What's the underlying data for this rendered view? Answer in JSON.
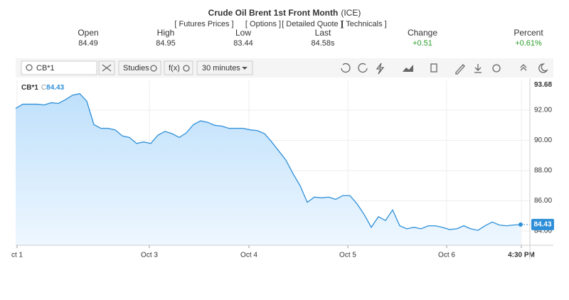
{
  "header": {
    "title": "Crude Oil Brent 1st Front Month",
    "exchange": "(ICE)",
    "links": [
      "[ Futures Prices ]",
      "[ Options ]",
      "[ Detailed Quote ]",
      "[ Technicals ]"
    ]
  },
  "quote": [
    {
      "label": "Open",
      "value": "84.49"
    },
    {
      "label": "High",
      "value": "84.95"
    },
    {
      "label": "Low",
      "value": "83.44"
    },
    {
      "label": "Last",
      "value": "84.58s"
    },
    {
      "label": "Change",
      "value": "+0.51"
    },
    {
      "label": "Percent",
      "value": "+0.61%"
    }
  ],
  "toolbar": {
    "symbol": "CB*1",
    "studies": "Studies",
    "fx": "f(x)",
    "interval": "30 minutes"
  },
  "chart": {
    "type": "line",
    "close_prefix": "C",
    "series": [
      {
        "name": "CB*1",
        "color": "#2e8fd8",
        "values": [
          92.12,
          92.4,
          92.4,
          92.4,
          92.35,
          92.5,
          92.45,
          92.7,
          93.0,
          93.1,
          92.6,
          91.05,
          90.8,
          90.8,
          90.7,
          90.3,
          90.2,
          89.8,
          89.9,
          89.8,
          90.35,
          90.6,
          90.45,
          90.2,
          90.5,
          91.05,
          91.3,
          91.2,
          91.0,
          90.95,
          90.8,
          90.8,
          90.8,
          90.7,
          90.65,
          90.45,
          89.9,
          89.3,
          88.7,
          87.8,
          87.0,
          85.9,
          86.25,
          86.2,
          86.25,
          86.1,
          86.35,
          86.35,
          85.8,
          85.1,
          84.25,
          84.95,
          84.7,
          85.4,
          84.35,
          84.15,
          84.25,
          84.15,
          84.35,
          84.35,
          84.25,
          84.1,
          84.15,
          84.35,
          84.15,
          84.05,
          84.35,
          84.6,
          84.4,
          84.35,
          84.4,
          84.43
        ]
      }
    ],
    "high_label": 93.68,
    "xlim": [
      0,
      72.3
    ],
    "ylim": [
      83.06,
      93.98
    ],
    "xticks": [
      {
        "value": 0.2,
        "label": "ct 1"
      },
      {
        "value": 18.8,
        "label": "Oct 3"
      },
      {
        "value": 32.8,
        "label": "Oct 4"
      },
      {
        "value": 46.7,
        "label": "Oct 5"
      },
      {
        "value": 60.6,
        "label": "Oct 6"
      },
      {
        "value": 71.1,
        "label": "4:30 PM"
      }
    ],
    "yticks": [
      {
        "value": 84,
        "label": "84.00"
      },
      {
        "value": 86,
        "label": "86.00"
      },
      {
        "value": 88,
        "label": "88.00"
      },
      {
        "value": 90,
        "label": "90.00"
      },
      {
        "value": 92,
        "label": "92.00"
      }
    ],
    "grid": true
  }
}
